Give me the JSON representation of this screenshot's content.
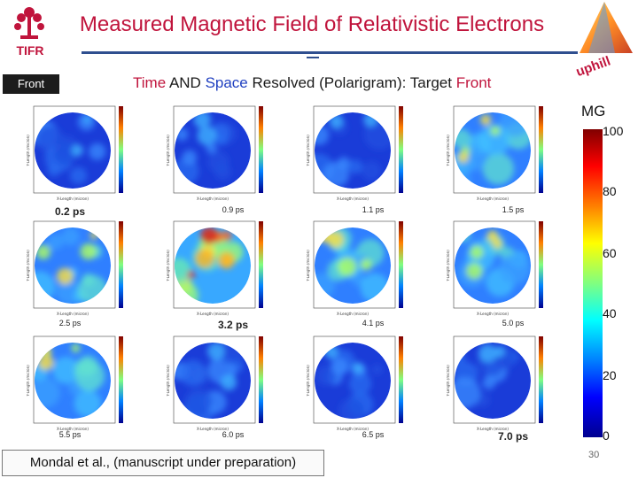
{
  "header": {
    "title": "Measured Magnetic Field of Relativistic Electrons",
    "logo_left_text": "TIFR",
    "logo_right_text": "uphill"
  },
  "front_badge": "Front",
  "subtitle": {
    "part1": "Time",
    "part2": " AND ",
    "part3": "Space",
    "part4": " Resolved (Polarigram): Target ",
    "part5": "Front"
  },
  "colorbar": {
    "title": "MG",
    "ticks": [
      "100",
      "80",
      "60",
      "40",
      "20",
      "0"
    ]
  },
  "panels": [
    {
      "time": "0.2 ps",
      "intensity": "low"
    },
    {
      "time": "0.9 ps",
      "intensity": "low"
    },
    {
      "time": "1.1 ps",
      "intensity": "low"
    },
    {
      "time": "1.5 ps",
      "intensity": "medium"
    },
    {
      "time": "2.5 ps",
      "intensity": "medium"
    },
    {
      "time": "3.2 ps",
      "intensity": "high"
    },
    {
      "time": "4.1 ps",
      "intensity": "medium"
    },
    {
      "time": "5.0 ps",
      "intensity": "medium"
    },
    {
      "time": "5.5 ps",
      "intensity": "medium"
    },
    {
      "time": "6.0 ps",
      "intensity": "low"
    },
    {
      "time": "6.5 ps",
      "intensity": "low"
    },
    {
      "time": "7.0 ps",
      "intensity": "low"
    }
  ],
  "axis_text": {
    "x": "X-Length (micron)",
    "y": "Y-Length (micron)"
  },
  "citation": "Mondal et al., (manuscript under preparation)",
  "page_number": "30",
  "colors": {
    "title": "#c0143c",
    "accent_blue": "#2040c0",
    "rule": "#2f4f8f"
  }
}
